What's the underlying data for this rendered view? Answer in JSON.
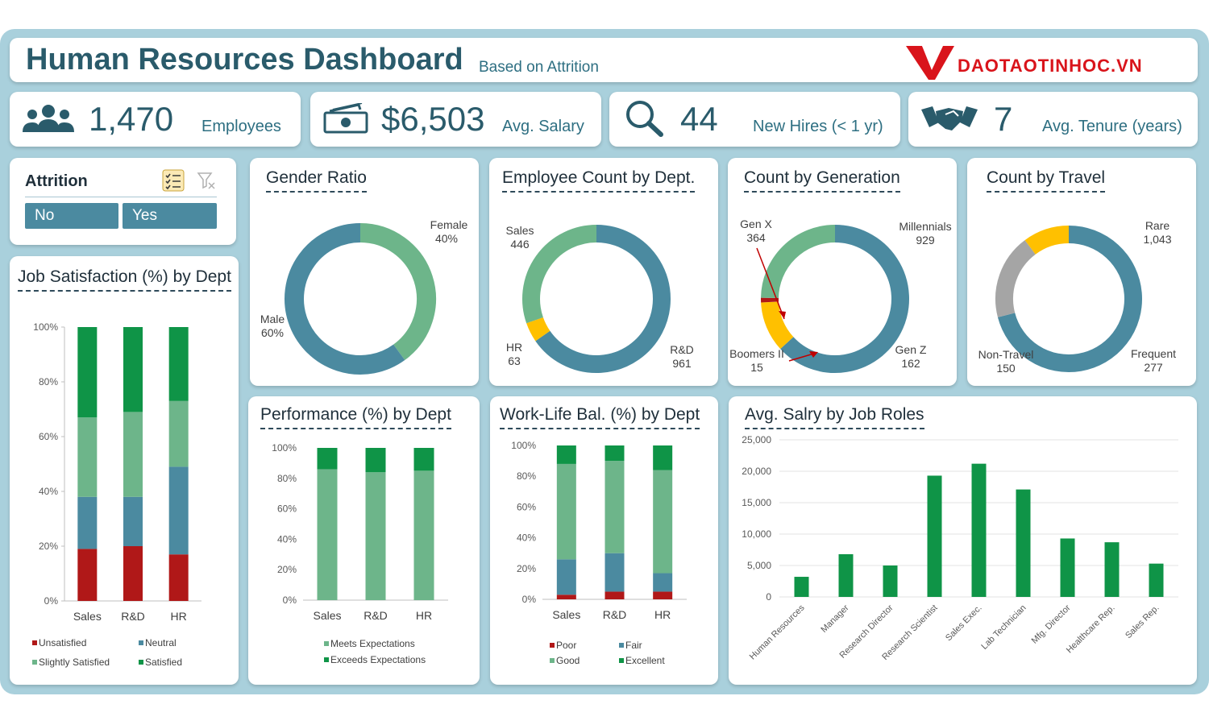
{
  "header": {
    "title": "Human Resources Dashboard",
    "subtitle": "Based on Attrition",
    "logo_text": "DAOTAOTINHOC.VN"
  },
  "kpis": [
    {
      "icon": "people-icon",
      "value": "1,470",
      "label": "Employees"
    },
    {
      "icon": "money-icon",
      "value": "$6,503",
      "label": "Avg. Salary"
    },
    {
      "icon": "search-icon",
      "value": "44",
      "label": "New Hires (< 1 yr)"
    },
    {
      "icon": "handshake-icon",
      "value": "7",
      "label": "Avg. Tenure (years)"
    }
  ],
  "slicer": {
    "title": "Attrition",
    "options": [
      "No",
      "Yes"
    ]
  },
  "colors": {
    "blue": "#4b8aa0",
    "light_green": "#6db58a",
    "dark_green": "#0f9447",
    "yellow": "#ffc000",
    "gray": "#a5a5a5",
    "red": "#b01818",
    "title_dark": "#2a5b6b"
  },
  "chart_data": [
    {
      "id": "gender",
      "type": "pie",
      "title": "Gender Ratio",
      "slices": [
        {
          "name": "Female",
          "label": "40%",
          "value": 40,
          "color": "#6db58a"
        },
        {
          "name": "Male",
          "label": "60%",
          "value": 60,
          "color": "#4b8aa0"
        }
      ]
    },
    {
      "id": "dept",
      "type": "pie",
      "title": "Employee Count by Dept.",
      "slices": [
        {
          "name": "R&D",
          "label": "961",
          "value": 961,
          "color": "#4b8aa0"
        },
        {
          "name": "HR",
          "label": "63",
          "value": 63,
          "color": "#ffc000"
        },
        {
          "name": "Sales",
          "label": "446",
          "value": 446,
          "color": "#6db58a"
        }
      ]
    },
    {
      "id": "generation",
      "type": "pie",
      "title": "Count by Generation",
      "slices": [
        {
          "name": "Millennials",
          "label": "929",
          "value": 929,
          "color": "#4b8aa0"
        },
        {
          "name": "Gen Z",
          "label": "162",
          "value": 162,
          "color": "#ffc000"
        },
        {
          "name": "Boomers II",
          "label": "15",
          "value": 15,
          "color": "#b01818"
        },
        {
          "name": "Gen X",
          "label": "364",
          "value": 364,
          "color": "#6db58a"
        }
      ]
    },
    {
      "id": "travel",
      "type": "pie",
      "title": "Count by Travel",
      "slices": [
        {
          "name": "Rare",
          "label": "1,043",
          "value": 1043,
          "color": "#4b8aa0"
        },
        {
          "name": "Frequent",
          "label": "277",
          "value": 277,
          "color": "#a5a5a5"
        },
        {
          "name": "Non-Travel",
          "label": "150",
          "value": 150,
          "color": "#ffc000"
        }
      ]
    },
    {
      "id": "jobsat",
      "type": "bar",
      "title": "Job Satisfaction (%) by Dept",
      "categories": [
        "Sales",
        "R&D",
        "HR"
      ],
      "ylim": [
        0,
        100
      ],
      "yticks": [
        "0%",
        "20%",
        "40%",
        "60%",
        "80%",
        "100%"
      ],
      "series": [
        {
          "name": "Unsatisfied",
          "color": "#b01818",
          "values": [
            19,
            20,
            17
          ]
        },
        {
          "name": "Neutral",
          "color": "#4b8aa0",
          "values": [
            19,
            18,
            32
          ]
        },
        {
          "name": "Slightly Satisfied",
          "color": "#6db58a",
          "values": [
            29,
            31,
            24
          ]
        },
        {
          "name": "Satisfied",
          "color": "#0f9447",
          "values": [
            33,
            31,
            27
          ]
        }
      ]
    },
    {
      "id": "performance",
      "type": "bar",
      "title": "Performance (%) by Dept",
      "categories": [
        "Sales",
        "R&D",
        "HR"
      ],
      "ylim": [
        0,
        100
      ],
      "yticks": [
        "0%",
        "20%",
        "40%",
        "60%",
        "80%",
        "100%"
      ],
      "series": [
        {
          "name": "Meets Expectations",
          "color": "#6db58a",
          "values": [
            86,
            84,
            85
          ]
        },
        {
          "name": "Exceeds Expectations",
          "color": "#0f9447",
          "values": [
            14,
            16,
            15
          ]
        }
      ]
    },
    {
      "id": "worklife",
      "type": "bar",
      "title": "Work-Life Bal. (%) by Dept",
      "categories": [
        "Sales",
        "R&D",
        "HR"
      ],
      "ylim": [
        0,
        100
      ],
      "yticks": [
        "0%",
        "20%",
        "40%",
        "60%",
        "80%",
        "100%"
      ],
      "series": [
        {
          "name": "Poor",
          "color": "#b01818",
          "values": [
            3,
            5,
            5
          ]
        },
        {
          "name": "Fair",
          "color": "#4b8aa0",
          "values": [
            23,
            25,
            12
          ]
        },
        {
          "name": "Good",
          "color": "#6db58a",
          "values": [
            62,
            60,
            67
          ]
        },
        {
          "name": "Excellent",
          "color": "#0f9447",
          "values": [
            12,
            10,
            16
          ]
        }
      ]
    },
    {
      "id": "salary",
      "type": "bar",
      "title": "Avg. Salry by Job Roles",
      "categories": [
        "Human Resources",
        "Manager",
        "Research Director",
        "Research Scientist",
        "Sales Exec.",
        "Lab Technician",
        "Mfg. Director",
        "Healthcare Rep.",
        "Sales Rep."
      ],
      "values": [
        3200,
        6800,
        5000,
        19300,
        21200,
        17100,
        9300,
        8700,
        5300
      ],
      "ylim": [
        0,
        25000
      ],
      "yticks": [
        "0",
        "5,000",
        "10,000",
        "15,000",
        "20,000",
        "25,000"
      ],
      "color": "#0f9447"
    }
  ]
}
